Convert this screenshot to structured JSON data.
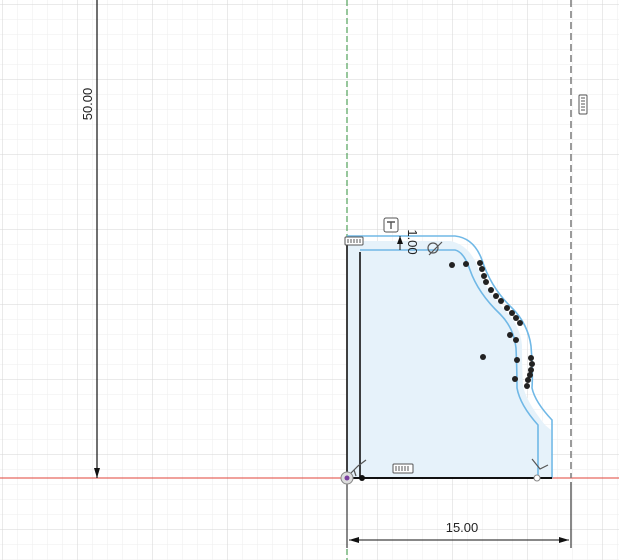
{
  "sketch": {
    "dimensions": {
      "height_label": "50.00",
      "width_label": "15.00",
      "offset_label": "1.00"
    },
    "colors": {
      "background": "#ffffff",
      "grid_minor": "#eeeeee",
      "grid_major": "#d6d6d6",
      "x_axis": "#e0433a",
      "y_axis": "#2f8f3a",
      "profile_fill": "#e6f2fa",
      "profile_edge": "#70b8e6",
      "sketch_line": "#111111",
      "construction_line": "#7a7a7a"
    },
    "icons": [
      "horizontal-constraint-icon",
      "vertical-constraint-icon",
      "coincident-constraint-icon",
      "tangent-constraint-icon",
      "fix-constraint-icon",
      "offset-constraint-icon"
    ]
  }
}
